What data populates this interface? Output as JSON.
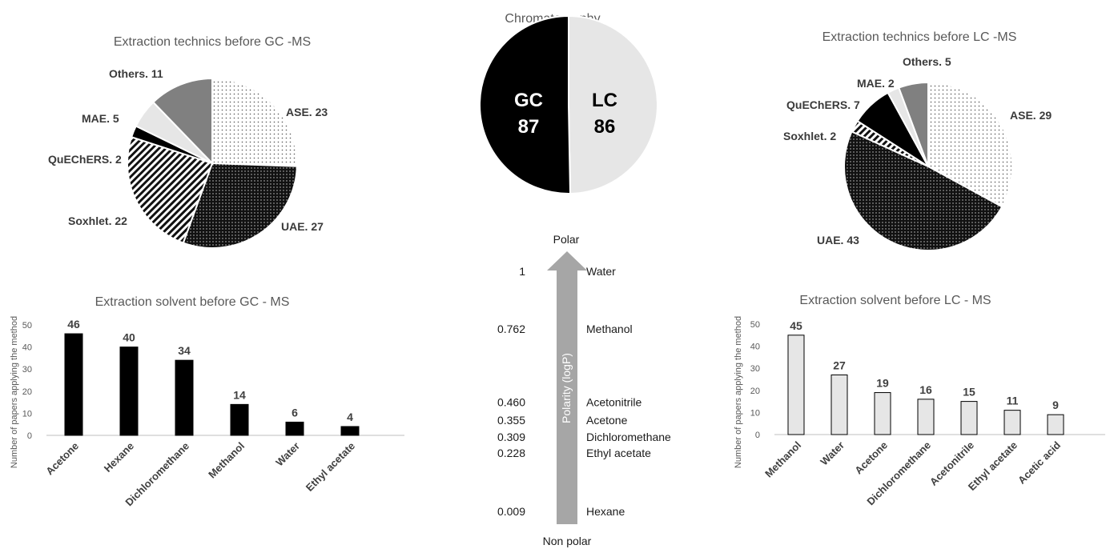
{
  "chart_data": [
    {
      "type": "pie",
      "title": "Extraction technics before GC -MS",
      "slices": [
        {
          "label": "ASE. 23",
          "value": 23,
          "pattern": "dots-light"
        },
        {
          "label": "UAE. 27",
          "value": 27,
          "pattern": "dots-dark"
        },
        {
          "label": "Soxhlet. 22",
          "value": 22,
          "pattern": "diagonal"
        },
        {
          "label": "QuEChERS. 2",
          "value": 2,
          "pattern": "black"
        },
        {
          "label": "MAE. 5",
          "value": 5,
          "pattern": "light-gray"
        },
        {
          "label": "Others. 11",
          "value": 11,
          "pattern": "gray"
        }
      ]
    },
    {
      "type": "pie",
      "title": "Chromatography",
      "slices": [
        {
          "name": "LC",
          "label": "LC",
          "value": 86,
          "color": "#e6e6e6",
          "text_color": "#000000"
        },
        {
          "name": "GC",
          "label": "GC",
          "value": 87,
          "color": "#000000",
          "text_color": "#ffffff"
        }
      ]
    },
    {
      "type": "pie",
      "title": "Extraction technics before LC -MS",
      "slices": [
        {
          "label": "ASE. 29",
          "value": 29,
          "pattern": "dots-light"
        },
        {
          "label": "UAE. 43",
          "value": 43,
          "pattern": "dots-dark"
        },
        {
          "label": "Soxhlet. 2",
          "value": 2,
          "pattern": "diagonal"
        },
        {
          "label": "QuEChERS. 7",
          "value": 7,
          "pattern": "black"
        },
        {
          "label": "MAE. 2",
          "value": 2,
          "pattern": "light-gray"
        },
        {
          "label": "Others. 5",
          "value": 5,
          "pattern": "gray"
        }
      ]
    },
    {
      "type": "bar",
      "title": "Extraction solvent before GC - MS",
      "ylabel": "Number of papers applying the method",
      "categories": [
        "Acetone",
        "Hexane",
        "Dichloromethane",
        "Methanol",
        "Water",
        "Ethyl acetate"
      ],
      "values": [
        46,
        40,
        34,
        14,
        6,
        4
      ],
      "ylim": [
        0,
        50
      ],
      "yticks": [
        0,
        10,
        20,
        30,
        40,
        50
      ],
      "bar_color": "#000000"
    },
    {
      "type": "bar",
      "title": "Extraction solvent before LC - MS",
      "ylabel": "Number of papers applying the method",
      "categories": [
        "Methanol",
        "Water",
        "Acetone",
        "Dichloromethane",
        "Acetonitrile",
        "Ethyl acetate",
        "Acetic acid"
      ],
      "values": [
        45,
        27,
        19,
        16,
        15,
        11,
        9
      ],
      "ylim": [
        0,
        50
      ],
      "yticks": [
        0,
        10,
        20,
        30,
        40,
        50
      ],
      "bar_color": "#e6e6e6"
    },
    {
      "type": "scale",
      "top_label": "Polar",
      "bottom_label": "Non polar",
      "axis_label": "Polarity (logP)",
      "items": [
        {
          "value": "1",
          "v": 1,
          "solvent": "Water"
        },
        {
          "value": "0.762",
          "v": 0.762,
          "solvent": "Methanol"
        },
        {
          "value": "0.460",
          "v": 0.46,
          "solvent": "Acetonitrile"
        },
        {
          "value": "0.355",
          "v": 0.355,
          "solvent": "Acetone"
        },
        {
          "value": "0.309",
          "v": 0.309,
          "solvent": "Dichloromethane"
        },
        {
          "value": "0.228",
          "v": 0.228,
          "solvent": "Ethyl acetate"
        },
        {
          "value": "0.009",
          "v": 0.009,
          "solvent": "Hexane"
        }
      ]
    }
  ]
}
